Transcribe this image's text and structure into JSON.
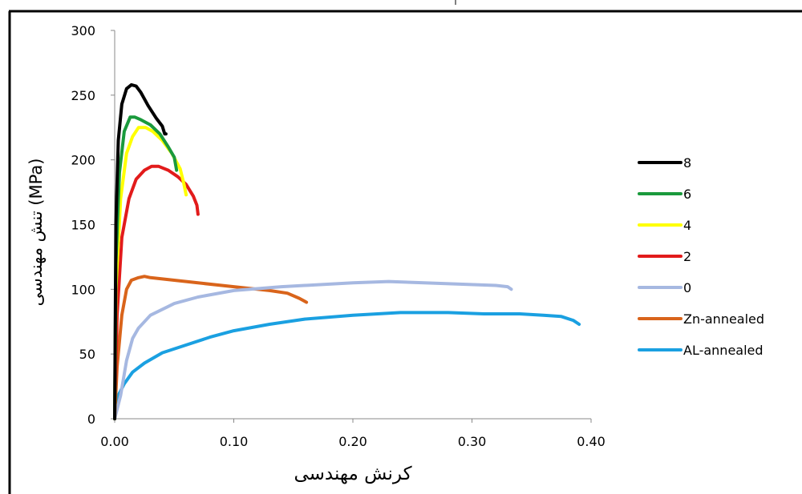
{
  "chart_data": {
    "type": "line",
    "title": "",
    "xlabel": "کرنش مهندسی",
    "ylabel": "تنش مهندسی (MPa)",
    "xlim": [
      0,
      0.4
    ],
    "ylim": [
      0,
      300
    ],
    "x_ticks": [
      "0.00",
      "0.10",
      "0.20",
      "0.30",
      "0.40"
    ],
    "y_ticks": [
      "0",
      "50",
      "100",
      "150",
      "200",
      "250",
      "300"
    ],
    "grid": false,
    "legend_position": "right",
    "series": [
      {
        "name": "8",
        "color": "#000000",
        "points": [
          [
            0,
            0
          ],
          [
            0.001,
            150
          ],
          [
            0.003,
            215
          ],
          [
            0.006,
            243
          ],
          [
            0.01,
            255
          ],
          [
            0.014,
            258
          ],
          [
            0.018,
            257
          ],
          [
            0.022,
            252
          ],
          [
            0.028,
            242
          ],
          [
            0.035,
            232
          ],
          [
            0.04,
            226
          ],
          [
            0.042,
            220
          ],
          [
            0.043,
            220
          ]
        ]
      },
      {
        "name": "6",
        "color": "#1a9a3c",
        "points": [
          [
            0,
            0
          ],
          [
            0.001,
            120
          ],
          [
            0.004,
            190
          ],
          [
            0.008,
            222
          ],
          [
            0.013,
            233
          ],
          [
            0.017,
            233
          ],
          [
            0.022,
            231
          ],
          [
            0.03,
            227
          ],
          [
            0.038,
            220
          ],
          [
            0.045,
            210
          ],
          [
            0.05,
            202
          ],
          [
            0.052,
            192
          ]
        ]
      },
      {
        "name": "4",
        "color": "#ffff00",
        "points": [
          [
            0,
            0
          ],
          [
            0.001,
            100
          ],
          [
            0.005,
            170
          ],
          [
            0.01,
            205
          ],
          [
            0.015,
            218
          ],
          [
            0.02,
            225
          ],
          [
            0.026,
            225
          ],
          [
            0.032,
            222
          ],
          [
            0.04,
            215
          ],
          [
            0.048,
            205
          ],
          [
            0.055,
            193
          ],
          [
            0.058,
            182
          ],
          [
            0.06,
            173
          ]
        ]
      },
      {
        "name": "2",
        "color": "#e21b1b",
        "points": [
          [
            0,
            0
          ],
          [
            0.002,
            80
          ],
          [
            0.006,
            140
          ],
          [
            0.012,
            170
          ],
          [
            0.018,
            185
          ],
          [
            0.025,
            192
          ],
          [
            0.031,
            195
          ],
          [
            0.037,
            195
          ],
          [
            0.045,
            192
          ],
          [
            0.053,
            187
          ],
          [
            0.06,
            181
          ],
          [
            0.066,
            172
          ],
          [
            0.069,
            165
          ],
          [
            0.07,
            158
          ]
        ]
      },
      {
        "name": "0",
        "color": "#a6b8e1",
        "points": [
          [
            0,
            0
          ],
          [
            0.005,
            18
          ],
          [
            0.01,
            45
          ],
          [
            0.015,
            62
          ],
          [
            0.02,
            70
          ],
          [
            0.03,
            80
          ],
          [
            0.05,
            89
          ],
          [
            0.07,
            94
          ],
          [
            0.1,
            99
          ],
          [
            0.14,
            102
          ],
          [
            0.18,
            104
          ],
          [
            0.2,
            105
          ],
          [
            0.23,
            106
          ],
          [
            0.26,
            105
          ],
          [
            0.29,
            104
          ],
          [
            0.32,
            103
          ],
          [
            0.33,
            102
          ],
          [
            0.333,
            100
          ]
        ]
      },
      {
        "name": "Zn-annealed",
        "color": "#d9641b",
        "points": [
          [
            0,
            0
          ],
          [
            0.002,
            40
          ],
          [
            0.006,
            80
          ],
          [
            0.01,
            100
          ],
          [
            0.014,
            107
          ],
          [
            0.02,
            109
          ],
          [
            0.025,
            110
          ],
          [
            0.03,
            109
          ],
          [
            0.05,
            107
          ],
          [
            0.07,
            105
          ],
          [
            0.1,
            102
          ],
          [
            0.13,
            99
          ],
          [
            0.145,
            97
          ],
          [
            0.155,
            93
          ],
          [
            0.161,
            90
          ]
        ]
      },
      {
        "name": "AL-annealed",
        "color": "#1aa0e1",
        "points": [
          [
            0,
            0
          ],
          [
            0.003,
            18
          ],
          [
            0.008,
            27
          ],
          [
            0.015,
            36
          ],
          [
            0.025,
            43
          ],
          [
            0.04,
            51
          ],
          [
            0.06,
            57
          ],
          [
            0.08,
            63
          ],
          [
            0.1,
            68
          ],
          [
            0.13,
            73
          ],
          [
            0.16,
            77
          ],
          [
            0.2,
            80
          ],
          [
            0.24,
            82
          ],
          [
            0.28,
            82
          ],
          [
            0.31,
            81
          ],
          [
            0.34,
            81
          ],
          [
            0.36,
            80
          ],
          [
            0.375,
            79
          ],
          [
            0.385,
            76
          ],
          [
            0.39,
            73
          ]
        ]
      }
    ]
  }
}
